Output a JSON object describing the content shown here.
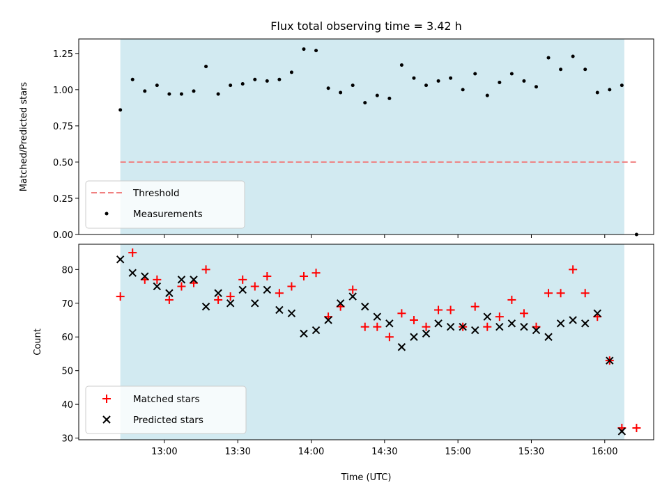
{
  "chart_data": [
    {
      "type": "scatter",
      "title": "Flux total observing time = 3.42 h",
      "xlabel": "",
      "ylabel": "Matched/Predicted stars",
      "xlim": [
        "12:25",
        "16:20"
      ],
      "ylim": [
        0,
        1.35
      ],
      "yticks": [
        "0.00",
        "0.25",
        "0.50",
        "0.75",
        "1.00",
        "1.25"
      ],
      "shaded_span": [
        "12:42",
        "16:08"
      ],
      "grid": false,
      "legend_position": "bottom-left",
      "threshold": {
        "name": "Threshold",
        "y": 0.5,
        "x_range": [
          "12:42",
          "16:13"
        ],
        "color": "#f08080"
      },
      "series": [
        {
          "name": "Measurements",
          "color": "#000000",
          "x": [
            "12:42",
            "12:47",
            "12:52",
            "12:57",
            "13:02",
            "13:07",
            "13:12",
            "13:17",
            "13:22",
            "13:27",
            "13:32",
            "13:37",
            "13:42",
            "13:47",
            "13:52",
            "13:57",
            "14:02",
            "14:07",
            "14:12",
            "14:17",
            "14:22",
            "14:27",
            "14:32",
            "14:37",
            "14:42",
            "14:47",
            "14:52",
            "14:57",
            "15:02",
            "15:07",
            "15:12",
            "15:17",
            "15:22",
            "15:27",
            "15:32",
            "15:37",
            "15:42",
            "15:47",
            "15:52",
            "15:57",
            "16:02",
            "16:07",
            "16:13"
          ],
          "values": [
            0.86,
            1.07,
            0.99,
            1.03,
            0.97,
            0.97,
            0.99,
            1.16,
            0.97,
            1.03,
            1.04,
            1.07,
            1.06,
            1.07,
            1.12,
            1.28,
            1.27,
            1.01,
            0.98,
            1.03,
            0.91,
            0.96,
            0.94,
            1.17,
            1.08,
            1.03,
            1.06,
            1.08,
            1.0,
            1.11,
            0.96,
            1.05,
            1.11,
            1.06,
            1.02,
            1.22,
            1.14,
            1.23,
            1.14,
            0.98,
            1.0,
            1.03,
            0.0
          ]
        }
      ]
    },
    {
      "type": "scatter",
      "xlabel": "Time (UTC)",
      "ylabel": "Count",
      "xlim": [
        "12:25",
        "16:20"
      ],
      "ylim": [
        29.5,
        87.5
      ],
      "xticks": [
        "13:00",
        "13:30",
        "14:00",
        "14:30",
        "15:00",
        "15:30",
        "16:00"
      ],
      "yticks": [
        "30",
        "40",
        "50",
        "60",
        "70",
        "80"
      ],
      "shaded_span": [
        "12:42",
        "16:08"
      ],
      "grid": false,
      "legend_position": "bottom-left",
      "series": [
        {
          "name": "Matched stars",
          "marker": "+",
          "color": "#ff0000",
          "x": [
            "12:42",
            "12:47",
            "12:52",
            "12:57",
            "13:02",
            "13:07",
            "13:12",
            "13:17",
            "13:22",
            "13:27",
            "13:32",
            "13:37",
            "13:42",
            "13:47",
            "13:52",
            "13:57",
            "14:02",
            "14:07",
            "14:12",
            "14:17",
            "14:22",
            "14:27",
            "14:32",
            "14:37",
            "14:42",
            "14:47",
            "14:52",
            "14:57",
            "15:02",
            "15:07",
            "15:12",
            "15:17",
            "15:22",
            "15:27",
            "15:32",
            "15:37",
            "15:42",
            "15:47",
            "15:52",
            "15:57",
            "16:02",
            "16:07",
            "16:13"
          ],
          "values": [
            72,
            85,
            77,
            77,
            71,
            75,
            76,
            80,
            71,
            72,
            77,
            75,
            78,
            73,
            75,
            78,
            79,
            66,
            69,
            74,
            63,
            63,
            60,
            67,
            65,
            63,
            68,
            68,
            63,
            69,
            63,
            66,
            71,
            67,
            63,
            73,
            73,
            80,
            73,
            66,
            53,
            33,
            33
          ]
        },
        {
          "name": "Predicted stars",
          "marker": "x",
          "color": "#000000",
          "x": [
            "12:42",
            "12:47",
            "12:52",
            "12:57",
            "13:02",
            "13:07",
            "13:12",
            "13:17",
            "13:22",
            "13:27",
            "13:32",
            "13:37",
            "13:42",
            "13:47",
            "13:52",
            "13:57",
            "14:02",
            "14:07",
            "14:12",
            "14:17",
            "14:22",
            "14:27",
            "14:32",
            "14:37",
            "14:42",
            "14:47",
            "14:52",
            "14:57",
            "15:02",
            "15:07",
            "15:12",
            "15:17",
            "15:22",
            "15:27",
            "15:32",
            "15:37",
            "15:42",
            "15:47",
            "15:52",
            "15:57",
            "16:02",
            "16:07"
          ],
          "values": [
            83,
            79,
            78,
            75,
            73,
            77,
            77,
            69,
            73,
            70,
            74,
            70,
            74,
            68,
            67,
            61,
            62,
            65,
            70,
            72,
            69,
            66,
            64,
            57,
            60,
            61,
            64,
            63,
            63,
            62,
            66,
            63,
            64,
            63,
            62,
            60,
            64,
            65,
            64,
            67,
            53,
            32
          ]
        }
      ]
    }
  ]
}
